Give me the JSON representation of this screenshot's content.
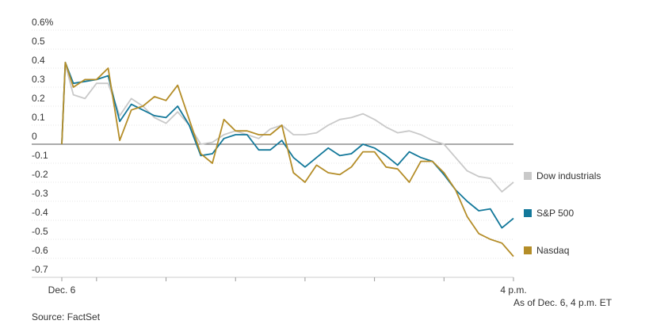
{
  "chart_data": {
    "type": "line",
    "note": "As of Dec. 6, 4 p.m. ET",
    "source": "Source: FactSet",
    "x": [
      570,
      573,
      580,
      590,
      600,
      610,
      620,
      630,
      640,
      650,
      660,
      670,
      680,
      690,
      700,
      710,
      720,
      730,
      740,
      750,
      760,
      770,
      780,
      790,
      800,
      810,
      820,
      830,
      840,
      850,
      860,
      870,
      880,
      890,
      900,
      910,
      920,
      930,
      940,
      950,
      960
    ],
    "xlim": [
      570,
      960
    ],
    "xticks": [
      {
        "value": 570,
        "label": "Dec. 6"
      },
      {
        "value": 600,
        "label": null
      },
      {
        "value": 660,
        "label": null
      },
      {
        "value": 720,
        "label": null
      },
      {
        "value": 780,
        "label": null
      },
      {
        "value": 840,
        "label": null
      },
      {
        "value": 900,
        "label": null
      },
      {
        "value": 960,
        "label": "4 p.m."
      }
    ],
    "ylim": [
      -0.7,
      0.6
    ],
    "yticks": [
      {
        "value": 0.6,
        "label": "0.6%"
      },
      0.5,
      0.4,
      0.3,
      0.2,
      0.1,
      0,
      -0.1,
      -0.2,
      -0.3,
      -0.4,
      -0.5,
      -0.6,
      -0.7
    ],
    "grid": true,
    "series": [
      {
        "name": "Dow industrials",
        "color": "#c9c9c9",
        "values": [
          0,
          0.42,
          0.26,
          0.24,
          0.32,
          0.32,
          0.15,
          0.24,
          0.2,
          0.14,
          0.11,
          0.17,
          0.1,
          0.0,
          0.01,
          0.05,
          0.07,
          0.05,
          0.03,
          0.08,
          0.1,
          0.05,
          0.05,
          0.06,
          0.1,
          0.13,
          0.14,
          0.16,
          0.13,
          0.09,
          0.06,
          0.07,
          0.05,
          0.02,
          0.0,
          -0.07,
          -0.14,
          -0.17,
          -0.18,
          -0.25,
          -0.2
        ]
      },
      {
        "name": "S&P 500",
        "color": "#13789a",
        "values": [
          0,
          0.43,
          0.32,
          0.33,
          0.34,
          0.36,
          0.12,
          0.21,
          0.18,
          0.15,
          0.14,
          0.2,
          0.1,
          -0.06,
          -0.05,
          0.03,
          0.05,
          0.05,
          -0.03,
          -0.03,
          0.02,
          -0.07,
          -0.12,
          -0.07,
          -0.02,
          -0.06,
          -0.05,
          0.0,
          -0.02,
          -0.06,
          -0.11,
          -0.04,
          -0.07,
          -0.09,
          -0.16,
          -0.24,
          -0.3,
          -0.35,
          -0.34,
          -0.44,
          -0.39
        ]
      },
      {
        "name": "Nasdaq",
        "color": "#b48d28",
        "values": [
          0,
          0.43,
          0.3,
          0.34,
          0.34,
          0.4,
          0.02,
          0.18,
          0.2,
          0.25,
          0.23,
          0.31,
          0.13,
          -0.05,
          -0.1,
          0.13,
          0.07,
          0.07,
          0.05,
          0.05,
          0.1,
          -0.15,
          -0.2,
          -0.11,
          -0.15,
          -0.16,
          -0.12,
          -0.04,
          -0.04,
          -0.12,
          -0.13,
          -0.2,
          -0.09,
          -0.09,
          -0.15,
          -0.24,
          -0.38,
          -0.47,
          -0.5,
          -0.52,
          -0.59
        ]
      }
    ]
  }
}
